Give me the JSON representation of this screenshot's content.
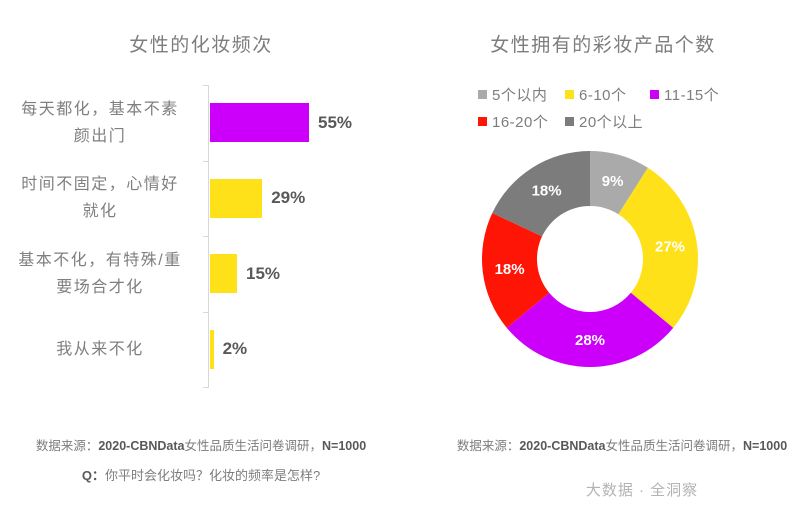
{
  "left_chart": {
    "title": "女性的化妆频次",
    "source": {
      "prefix": "数据来源：",
      "bold1": "2020-CBNData",
      "middle": "女性品质生活问卷调研，",
      "bold2": "N=1000"
    },
    "question": {
      "prefix": "Q：",
      "text": "你平时会化妆吗？化妆的频率是怎样?"
    }
  },
  "right_chart": {
    "title": "女性拥有的彩妆产品个数",
    "source": {
      "prefix": "数据来源：",
      "bold1": "2020-CBNData",
      "middle": "女性品质生活问卷调研，",
      "bold2": "N=1000"
    }
  },
  "watermark": "大数据 · 全洞察",
  "colors": {
    "magenta": "#cc00fa",
    "yellow": "#ffe11a",
    "red": "#ff1505",
    "gray_light": "#aaaaaa",
    "gray_dark": "#7c7c7c",
    "axis": "#d8d8d8",
    "text_gray": "#7d7d7d",
    "value_gray": "#595959"
  },
  "chart_data": [
    {
      "type": "bar",
      "orientation": "horizontal",
      "title": "女性的化妆频次",
      "categories": [
        "每天都化，基本不素颜出门",
        "时间不固定，心情好就化",
        "基本不化，有特殊/重要场合才化",
        "我从来不化"
      ],
      "category_lines": [
        [
          "每天都化，基本不素",
          "颜出门"
        ],
        [
          "时间不固定，心情好",
          "就化"
        ],
        [
          "基本不化，有特殊/重",
          "要场合才化"
        ],
        [
          "我从来不化"
        ]
      ],
      "values": [
        55,
        29,
        15,
        2
      ],
      "unit": "%",
      "bar_colors": [
        "#cc00fa",
        "#ffe11a",
        "#ffe11a",
        "#ffe11a"
      ],
      "xlim": [
        0,
        100
      ],
      "grid": false
    },
    {
      "type": "pie",
      "donut": true,
      "title": "女性拥有的彩妆产品个数",
      "categories": [
        "5个以内",
        "6-10个",
        "11-15个",
        "16-20个",
        "20个以上"
      ],
      "values": [
        9,
        27,
        28,
        18,
        18
      ],
      "unit": "%",
      "colors": [
        "#aaaaaa",
        "#ffe11a",
        "#cc00fa",
        "#ff1505",
        "#7c7c7c"
      ],
      "start_angle_deg": 0,
      "direction": "clockwise",
      "legend_position": "top"
    }
  ]
}
